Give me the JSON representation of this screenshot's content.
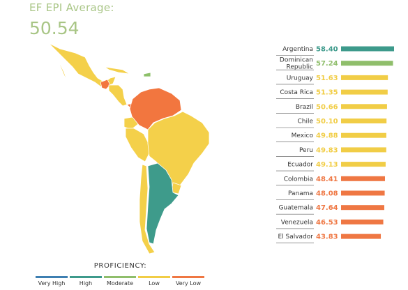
{
  "header": {
    "avg_label": "EF EPI Average:",
    "avg_value": "50.54"
  },
  "colors": {
    "very_high": "#3e7fb1",
    "high": "#3d9a8b",
    "moderate": "#8fbe6b",
    "low": "#f1cd46",
    "very_low": "#ef7743",
    "map_low": "#f4d04a",
    "map_high": "#3e9b8b",
    "map_very_low": "#f2763f",
    "map_moderate": "#8dc06a"
  },
  "legend": {
    "title": "PROFICIENCY:",
    "items": [
      {
        "label": "Very High",
        "color": "#3e7fb1"
      },
      {
        "label": "High",
        "color": "#3d9a8b"
      },
      {
        "label": "Moderate",
        "color": "#8fbe6b"
      },
      {
        "label": "Low",
        "color": "#f1cd46"
      },
      {
        "label": "Very Low",
        "color": "#ef7743"
      }
    ]
  },
  "chart_data": {
    "type": "bar",
    "orientation": "horizontal",
    "categories": [
      "Argentina",
      "Dominican Republic",
      "Uruguay",
      "Costa Rica",
      "Brazil",
      "Chile",
      "Mexico",
      "Peru",
      "Ecuador",
      "Colombia",
      "Panama",
      "Guatemala",
      "Venezuela",
      "El Salvador"
    ],
    "values": [
      58.4,
      57.24,
      51.63,
      51.35,
      50.66,
      50.1,
      49.88,
      49.83,
      49.13,
      48.41,
      48.08,
      47.64,
      46.53,
      43.83
    ],
    "value_labels": [
      "58.40",
      "57.24",
      "51.63",
      "51.35",
      "50.66",
      "50.10",
      "49.88",
      "49.83",
      "49.13",
      "48.41",
      "48.08",
      "47.64",
      "46.53",
      "43.83"
    ],
    "proficiency": [
      "High",
      "Moderate",
      "Low",
      "Low",
      "Low",
      "Low",
      "Low",
      "Low",
      "Low",
      "Very Low",
      "Very Low",
      "Very Low",
      "Very Low",
      "Very Low"
    ],
    "xlim": [
      0,
      58.4
    ],
    "grid": false,
    "title": "",
    "xlabel": "",
    "ylabel": ""
  }
}
